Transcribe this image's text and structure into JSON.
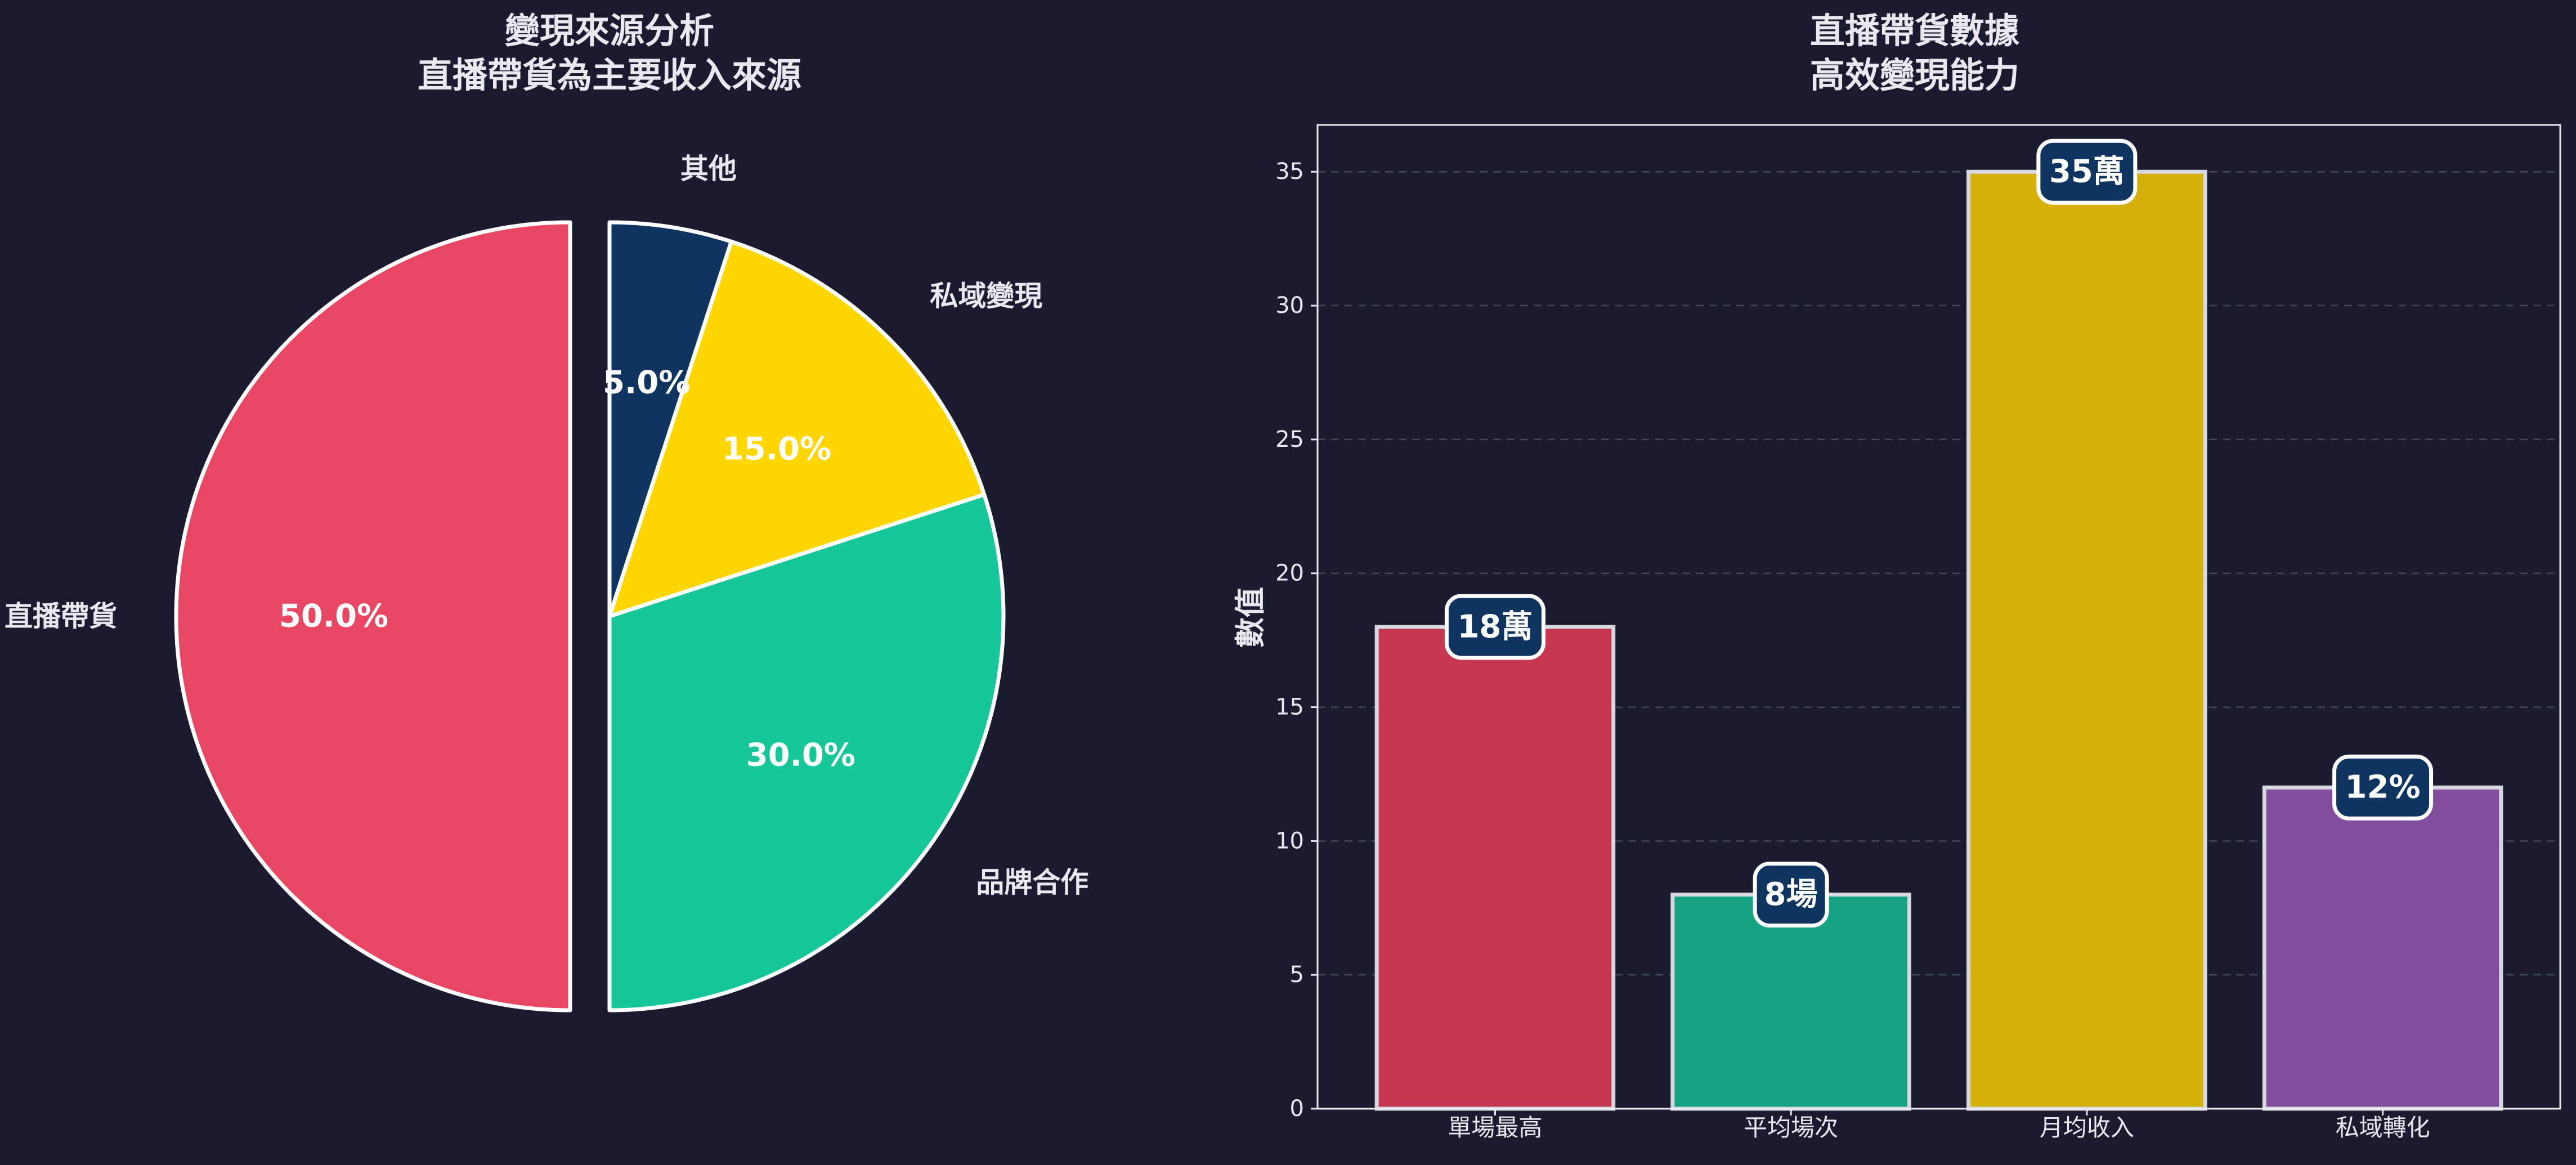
{
  "chart_data": [
    {
      "type": "pie",
      "title_lines": [
        "變現來源分析",
        "直播帶貨為主要收入來源"
      ],
      "slices": [
        {
          "label": "直播帶貨",
          "value": 50.0,
          "pct_label": "50.0%",
          "color": "#e84663",
          "exploded": true
        },
        {
          "label": "品牌合作",
          "value": 30.0,
          "pct_label": "30.0%",
          "color": "#16c79a",
          "exploded": false
        },
        {
          "label": "私域變現",
          "value": 15.0,
          "pct_label": "15.0%",
          "color": "#ffd600",
          "exploded": false
        },
        {
          "label": "其他",
          "value": 5.0,
          "pct_label": "5.0%",
          "color": "#0f3460",
          "exploded": false
        }
      ],
      "start_angle_deg": 90,
      "direction": "counterclockwise",
      "edge_color": "#ffffff"
    },
    {
      "type": "bar",
      "title_lines": [
        "直播帶貨數據",
        "高效變現能力"
      ],
      "categories": [
        "單場最高",
        "平均場次",
        "月均收入",
        "私域轉化"
      ],
      "values": [
        18,
        8,
        35,
        12
      ],
      "value_labels": [
        "18萬",
        "8場",
        "35萬",
        "12%"
      ],
      "colors": [
        "#c73850",
        "#16a383",
        "#d4b008",
        "#834d9e"
      ],
      "ylabel": "數值",
      "ylim": [
        0,
        36.75
      ],
      "yticks": [
        0,
        5,
        10,
        15,
        20,
        25,
        30,
        35
      ],
      "grid": true,
      "badge_color": "#0f3460"
    }
  ]
}
